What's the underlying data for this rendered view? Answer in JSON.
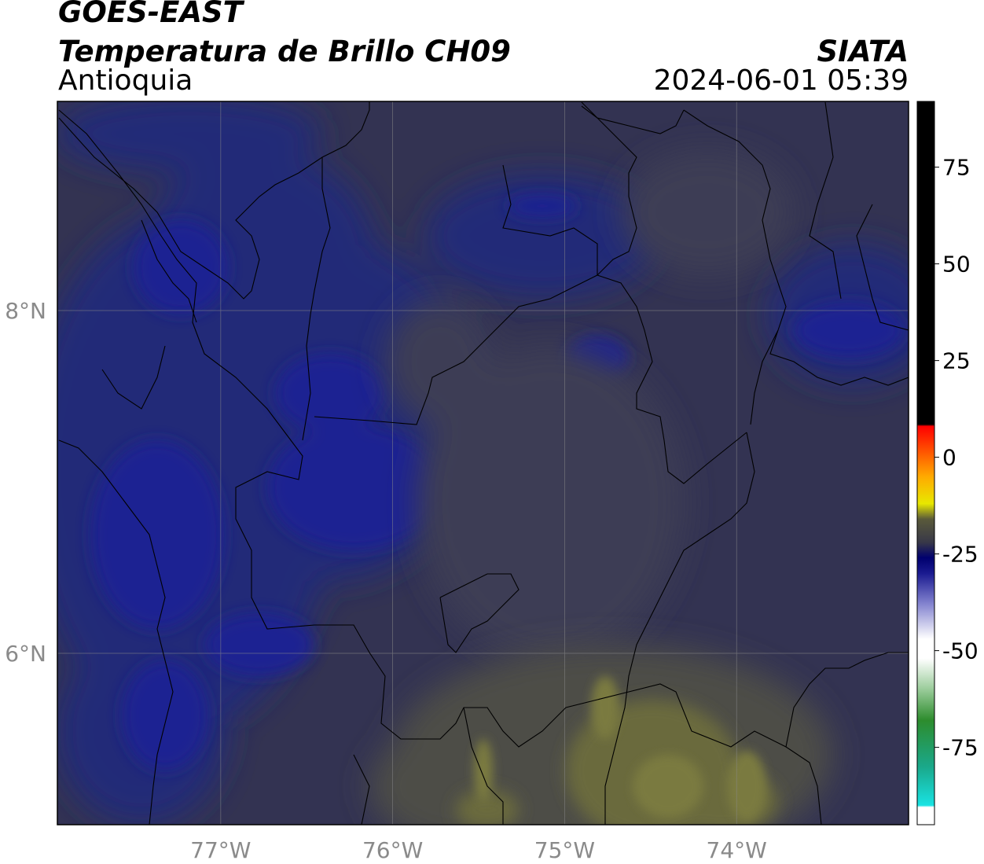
{
  "header": {
    "satellite": "GOES-EAST",
    "product": "Temperatura de Brillo CH09",
    "region": "Antioquia",
    "organization": "SIATA",
    "datetime": "2024-06-01 05:39"
  },
  "axes": {
    "lon_ticks": [
      {
        "value": -77,
        "label": "77°W"
      },
      {
        "value": -76,
        "label": "76°W"
      },
      {
        "value": -75,
        "label": "75°W"
      },
      {
        "value": -74,
        "label": "74°W"
      }
    ],
    "lat_ticks": [
      {
        "value": 8,
        "label": "8°N"
      },
      {
        "value": 6,
        "label": "6°N"
      }
    ],
    "lon_range": [
      -77.95,
      -73.0
    ],
    "lat_range": [
      5.0,
      9.22
    ]
  },
  "colorbar": {
    "range": [
      -95,
      92
    ],
    "ticks": [
      {
        "value": 75,
        "label": "75"
      },
      {
        "value": 50,
        "label": "50"
      },
      {
        "value": 25,
        "label": "25"
      },
      {
        "value": 0,
        "label": "0"
      },
      {
        "value": -25,
        "label": "-25"
      },
      {
        "value": -50,
        "label": "-50"
      },
      {
        "value": -75,
        "label": "-75"
      }
    ],
    "stops": [
      {
        "value": -95,
        "color": "#ffffff"
      },
      {
        "value": -90.5,
        "color": "#ffffff"
      },
      {
        "value": -90,
        "color": "#19e3e3"
      },
      {
        "value": -80,
        "color": "#1aa88a"
      },
      {
        "value": -68,
        "color": "#2d8c2d"
      },
      {
        "value": -60,
        "color": "#9acc9a"
      },
      {
        "value": -52,
        "color": "#ffffff"
      },
      {
        "value": -47,
        "color": "#ffffff"
      },
      {
        "value": -38,
        "color": "#8585d0"
      },
      {
        "value": -30,
        "color": "#1a1a90"
      },
      {
        "value": -26,
        "color": "#00006e"
      },
      {
        "value": -22,
        "color": "#383848"
      },
      {
        "value": -16,
        "color": "#5a5a3a"
      },
      {
        "value": -12,
        "color": "#e8e800"
      },
      {
        "value": -5,
        "color": "#ffaa00"
      },
      {
        "value": 4,
        "color": "#ff3300"
      },
      {
        "value": 8,
        "color": "#ff0000"
      },
      {
        "value": 8.5,
        "color": "#000000"
      },
      {
        "value": 92,
        "color": "#000000"
      }
    ]
  }
}
